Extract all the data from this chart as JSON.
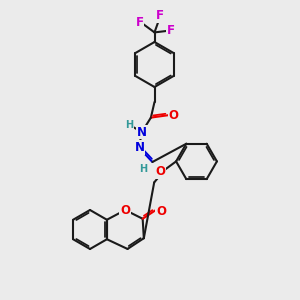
{
  "bg_color": "#ebebeb",
  "bond_color": "#1a1a1a",
  "bond_width": 1.5,
  "dbo": 0.06,
  "atom_colors": {
    "F": "#cc00cc",
    "O": "#ee0000",
    "N": "#0000dd",
    "H": "#339999",
    "C": "#1a1a1a"
  },
  "fs": 7.0,
  "fsl": 8.5,
  "figsize": [
    3.0,
    3.0
  ],
  "dpi": 100
}
